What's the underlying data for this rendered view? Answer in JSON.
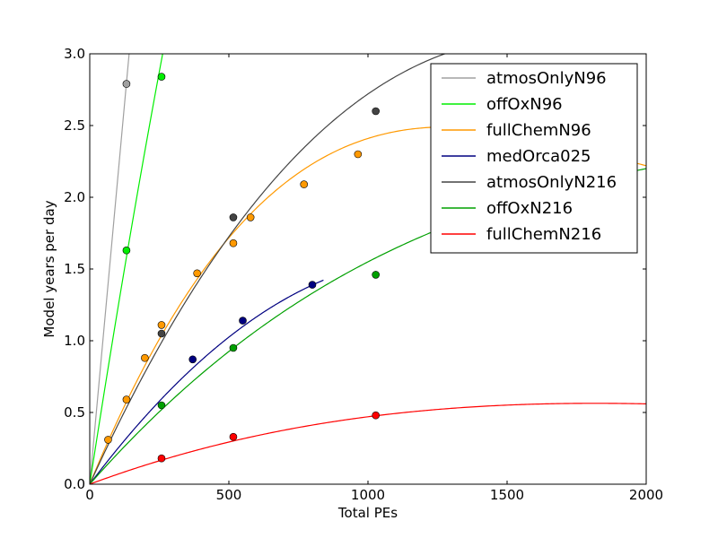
{
  "chart_data": {
    "type": "scatter",
    "xlabel": "Total PEs",
    "ylabel": "Model years per day",
    "xlim": [
      0,
      2000
    ],
    "ylim": [
      0,
      3.0
    ],
    "xticks": [
      0,
      500,
      1000,
      1500,
      2000
    ],
    "xtick_labels": [
      "0",
      "500",
      "1000",
      "1500",
      "2000"
    ],
    "yticks": [
      0,
      0.5,
      1.0,
      1.5,
      2.0,
      2.5,
      3.0
    ],
    "ytick_labels": [
      "0.0",
      "0.5",
      "1.0",
      "1.5",
      "2.0",
      "2.5",
      "3.0"
    ],
    "grid": false,
    "legend_position": "top-right",
    "series": [
      {
        "name": "atmosOnlyN96",
        "color": "#a0a0a0",
        "points": [
          [
            132,
            2.79
          ]
        ],
        "fit": [
          0,
          0.0212,
          0
        ],
        "fit_range": [
          0,
          2000
        ]
      },
      {
        "name": "offOxN96",
        "color": "#00ee00",
        "points": [
          [
            132,
            1.63
          ],
          [
            258,
            2.84
          ]
        ],
        "fit": [
          0,
          0.01255,
          -4.2e-06
        ],
        "fit_range": [
          0,
          2000
        ]
      },
      {
        "name": "fullChemN96",
        "color": "#ff9900",
        "points": [
          [
            66,
            0.31
          ],
          [
            132,
            0.59
          ],
          [
            198,
            0.88
          ],
          [
            258,
            1.11
          ],
          [
            386,
            1.47
          ],
          [
            516,
            1.68
          ],
          [
            578,
            1.86
          ],
          [
            770,
            2.09
          ],
          [
            964,
            2.3
          ]
        ],
        "fit": [
          0,
          0.00471,
          -2.8e-06,
          5e-10
        ],
        "fit_range": [
          0,
          2000
        ]
      },
      {
        "name": "medOrca025",
        "color": "#000080",
        "points": [
          [
            370,
            0.87
          ],
          [
            550,
            1.14
          ],
          [
            800,
            1.39
          ]
        ],
        "fit": [
          0,
          0.002575,
          -1.05e-06
        ],
        "fit_range": [
          0,
          840
        ]
      },
      {
        "name": "atmosOnlyN216",
        "color": "#444444",
        "points": [
          [
            258,
            1.05
          ],
          [
            516,
            1.86
          ],
          [
            1028,
            2.6
          ]
        ],
        "fit": [
          0,
          0.00426,
          -1.7e-06,
          1.6e-10
        ],
        "fit_range": [
          0,
          2000
        ]
      },
      {
        "name": "offOxN216",
        "color": "#00a000",
        "points": [
          [
            258,
            0.55
          ],
          [
            516,
            0.95
          ],
          [
            1028,
            1.46
          ]
        ],
        "fit": [
          0,
          0.0022,
          -7.5e-07,
          1e-10
        ],
        "fit_range": [
          0,
          2000
        ]
      },
      {
        "name": "fullChemN216",
        "color": "#ff0000",
        "points": [
          [
            258,
            0.18
          ],
          [
            516,
            0.33
          ],
          [
            1028,
            0.48
          ]
        ],
        "fit": [
          0,
          0.00072,
          -2.8e-07,
          3e-11
        ],
        "fit_range": [
          0,
          2000
        ]
      }
    ]
  }
}
